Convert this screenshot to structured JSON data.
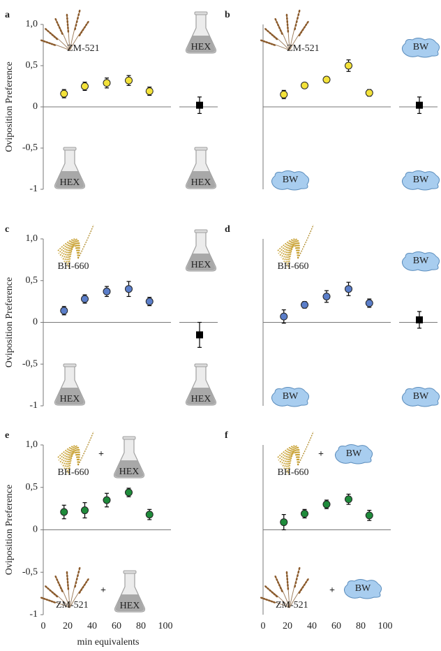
{
  "chart_data": [
    {
      "type": "scatter",
      "panel": "a",
      "y_label": "Oviposition Preference",
      "x": [
        17,
        34,
        52,
        70,
        87
      ],
      "values": [
        0.16,
        0.25,
        0.29,
        0.32,
        0.19
      ],
      "errors": [
        0.05,
        0.05,
        0.06,
        0.06,
        0.05
      ],
      "color": "#f3e23a",
      "control": {
        "value": 0.02,
        "error": 0.1
      },
      "xlim": [
        0,
        100
      ],
      "ylim": [
        -1,
        1
      ],
      "yticks": [
        -1,
        {
          "value": -0.5,
          "label": "-0,5"
        },
        0,
        {
          "value": 0.5,
          "label": "0,5"
        },
        {
          "value": 1,
          "label": "1,0"
        }
      ],
      "annotations": [
        "ZM-521",
        "HEX",
        "HEX",
        "HEX"
      ]
    },
    {
      "type": "scatter",
      "panel": "b",
      "x": [
        17,
        34,
        52,
        70,
        87
      ],
      "values": [
        0.15,
        0.26,
        0.33,
        0.5,
        0.17
      ],
      "errors": [
        0.05,
        0.02,
        0.02,
        0.07,
        0.04
      ],
      "color": "#f3e23a",
      "control": {
        "value": 0.02,
        "error": 0.1
      },
      "xlim": [
        0,
        100
      ],
      "ylim": [
        -1,
        1
      ],
      "annotations": [
        "ZM-521",
        "BW",
        "BW",
        "BW"
      ]
    },
    {
      "type": "scatter",
      "panel": "c",
      "y_label": "Oviposition Preference",
      "x": [
        17,
        34,
        52,
        70,
        87
      ],
      "values": [
        0.14,
        0.28,
        0.37,
        0.4,
        0.25
      ],
      "errors": [
        0.05,
        0.05,
        0.06,
        0.09,
        0.05
      ],
      "color": "#5b7ec9",
      "control": {
        "value": -0.15,
        "error": 0.15
      },
      "xlim": [
        0,
        100
      ],
      "ylim": [
        -1,
        1
      ],
      "yticks": [
        -1,
        {
          "value": -0.5,
          "label": "-0,5"
        },
        0,
        {
          "value": 0.5,
          "label": "0,5"
        },
        {
          "value": 1,
          "label": "1,0"
        }
      ],
      "annotations": [
        "BH-660",
        "HEX",
        "HEX",
        "HEX"
      ]
    },
    {
      "type": "scatter",
      "panel": "d",
      "x": [
        17,
        34,
        52,
        70,
        87
      ],
      "values": [
        0.07,
        0.21,
        0.31,
        0.4,
        0.23
      ],
      "errors": [
        0.08,
        0.04,
        0.07,
        0.08,
        0.05
      ],
      "color": "#5b7ec9",
      "control": {
        "value": 0.03,
        "error": 0.1
      },
      "xlim": [
        0,
        100
      ],
      "ylim": [
        -1,
        1
      ],
      "annotations": [
        "BH-660",
        "BW",
        "BW",
        "BW"
      ]
    },
    {
      "type": "scatter",
      "panel": "e",
      "y_label": "Oviposition Preference",
      "x_label": "min equivalents",
      "x": [
        17,
        34,
        52,
        70,
        87
      ],
      "values": [
        0.21,
        0.23,
        0.35,
        0.44,
        0.18
      ],
      "errors": [
        0.08,
        0.09,
        0.08,
        0.05,
        0.06
      ],
      "color": "#1f8b3b",
      "xlim": [
        0,
        100
      ],
      "xticks": [
        0,
        20,
        40,
        60,
        80,
        100
      ],
      "ylim": [
        -1,
        1
      ],
      "yticks": [
        -1,
        {
          "value": -0.5,
          "label": "-0,5"
        },
        0,
        {
          "value": 0.5,
          "label": "0,5"
        },
        {
          "value": 1,
          "label": "1,0"
        }
      ],
      "annotations": [
        "BH-660",
        "+",
        "HEX",
        "ZM-521",
        "+",
        "HEX"
      ]
    },
    {
      "type": "scatter",
      "panel": "f",
      "x": [
        17,
        34,
        52,
        70,
        87
      ],
      "values": [
        0.09,
        0.19,
        0.3,
        0.36,
        0.17
      ],
      "errors": [
        0.09,
        0.05,
        0.05,
        0.06,
        0.06
      ],
      "color": "#1f8b3b",
      "xlim": [
        0,
        100
      ],
      "xticks": [
        0,
        20,
        40,
        60,
        80,
        100
      ],
      "ylim": [
        -1,
        1
      ],
      "annotations": [
        "BH-660",
        "+",
        "BW",
        "ZM-521",
        "+",
        "BW"
      ]
    }
  ]
}
